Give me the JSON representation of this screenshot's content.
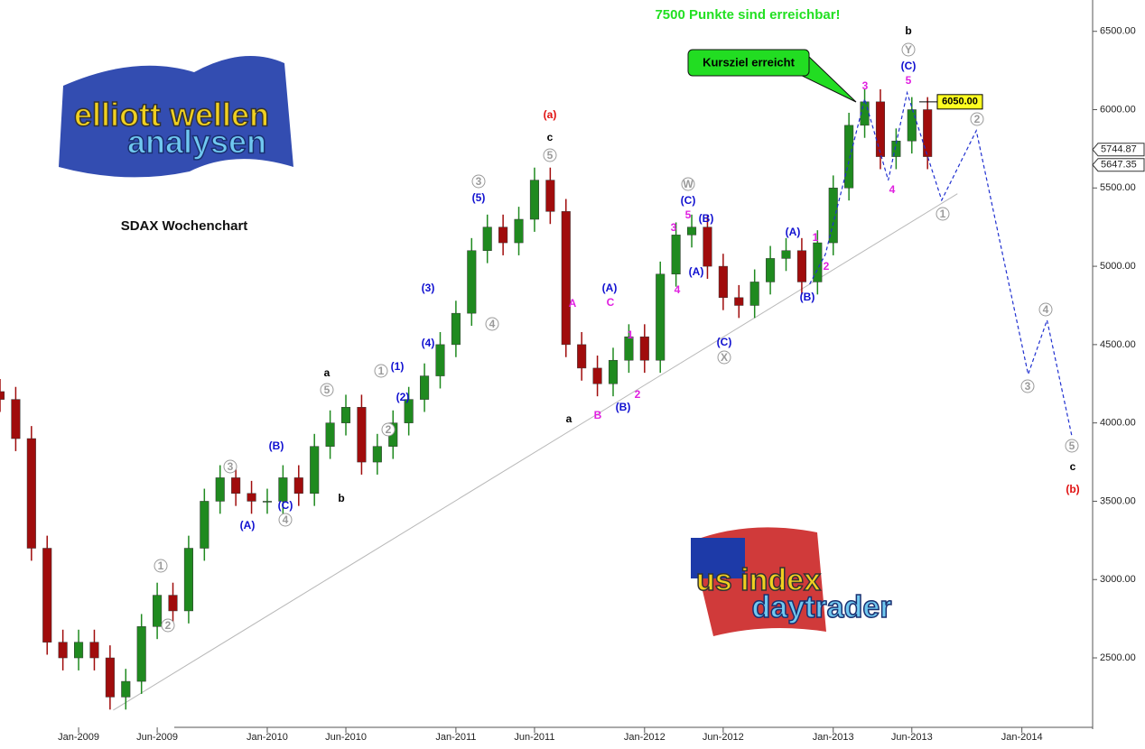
{
  "chart_data": {
    "type": "candlestick",
    "title": "7500 Punkte sind erreichbar!",
    "subtitle": "SDAX Wochenchart",
    "callout": "Kursziel erreicht",
    "logos": [
      "elliott wellen",
      "analysen",
      "us index",
      "daytrader"
    ],
    "up_color": "#1f8a1f",
    "down_color": "#a00c0c",
    "x": [
      -5,
      -4,
      -3,
      -2,
      -1,
      0,
      1,
      2,
      3,
      4,
      5,
      6,
      7,
      8,
      9,
      10,
      11,
      12,
      13,
      14,
      15,
      16,
      17,
      18,
      19,
      20,
      21,
      22,
      23,
      24,
      25,
      26,
      27,
      28,
      29,
      30,
      31,
      32,
      33,
      34,
      35,
      36,
      37,
      38,
      39,
      40,
      41,
      42,
      43,
      44,
      45,
      46,
      47,
      48,
      49,
      50,
      51,
      52,
      53,
      54
    ],
    "open": [
      4200,
      4150,
      3900,
      3200,
      2600,
      2500,
      2600,
      2500,
      2250,
      2350,
      2700,
      2900,
      2800,
      3200,
      3500,
      3650,
      3550,
      3500,
      3500,
      3650,
      3550,
      3850,
      4000,
      4100,
      3750,
      3850,
      4000,
      4150,
      4300,
      4500,
      4700,
      5100,
      5250,
      5150,
      5300,
      5550,
      5350,
      4500,
      4350,
      4250,
      4400,
      4550,
      4400,
      4950,
      5200,
      5250,
      5000,
      4800,
      4750,
      4900,
      5050,
      5100,
      4900,
      5150,
      5500,
      5900,
      6050,
      5700,
      5800,
      6000
    ],
    "high": [
      4280,
      4230,
      3980,
      3280,
      2680,
      2680,
      2680,
      2580,
      2430,
      2780,
      2980,
      2980,
      3280,
      3580,
      3730,
      3730,
      3630,
      3580,
      3730,
      3730,
      3930,
      4080,
      4180,
      4180,
      3930,
      4080,
      4230,
      4380,
      4580,
      4780,
      5180,
      5330,
      5330,
      5380,
      5630,
      5630,
      5430,
      4580,
      4430,
      4480,
      4630,
      4630,
      5030,
      5280,
      5330,
      5330,
      5080,
      4880,
      4980,
      5130,
      5180,
      5180,
      5230,
      5580,
      5980,
      6130,
      6130,
      5880,
      6080,
      6080
    ],
    "low": [
      4070,
      3820,
      3120,
      2520,
      2420,
      2420,
      2420,
      2170,
      2170,
      2270,
      2620,
      2720,
      2720,
      3120,
      3420,
      3470,
      3420,
      3420,
      3420,
      3470,
      3470,
      3770,
      3920,
      3670,
      3670,
      3770,
      3920,
      4070,
      4220,
      4420,
      4620,
      5020,
      5070,
      5070,
      5220,
      5270,
      4420,
      4270,
      4170,
      4170,
      4320,
      4320,
      4320,
      4870,
      5120,
      4920,
      4720,
      4670,
      4670,
      4820,
      4970,
      4820,
      4820,
      5070,
      5420,
      5820,
      5620,
      5620,
      5720,
      5620
    ],
    "close": [
      4150,
      3900,
      3200,
      2600,
      2500,
      2600,
      2500,
      2250,
      2350,
      2700,
      2900,
      2800,
      3200,
      3500,
      3650,
      3550,
      3500,
      3500,
      3650,
      3550,
      3850,
      4000,
      4100,
      3750,
      3850,
      4000,
      4150,
      4300,
      4500,
      4700,
      5100,
      5250,
      5150,
      5300,
      5550,
      5350,
      4500,
      4350,
      4250,
      4400,
      4550,
      4400,
      4950,
      5200,
      5250,
      5000,
      4800,
      4750,
      4900,
      5050,
      5100,
      4900,
      5150,
      5500,
      5900,
      6050,
      5700,
      5800,
      6000,
      5700
    ],
    "xlim": [
      -5,
      64.5
    ],
    "ylim": [
      2045,
      6700
    ],
    "xticks": [
      {
        "value": 0,
        "label": "Jan-2009"
      },
      {
        "value": 5,
        "label": "Jun-2009"
      },
      {
        "value": 12,
        "label": "Jan-2010"
      },
      {
        "value": 17,
        "label": "Jun-2010"
      },
      {
        "value": 24,
        "label": "Jan-2011"
      },
      {
        "value": 29,
        "label": "Jun-2011"
      },
      {
        "value": 36,
        "label": "Jan-2012"
      },
      {
        "value": 41,
        "label": "Jun-2012"
      },
      {
        "value": 48,
        "label": "Jan-2013"
      },
      {
        "value": 53,
        "label": "Jun-2013"
      },
      {
        "value": 60,
        "label": "Jan-2014"
      }
    ],
    "yticks": [
      {
        "value": 2500,
        "label": "2500.00"
      },
      {
        "value": 3000,
        "label": "3000.00"
      },
      {
        "value": 3500,
        "label": "3500.00"
      },
      {
        "value": 4000,
        "label": "4000.00"
      },
      {
        "value": 4500,
        "label": "4500.00"
      },
      {
        "value": 5000,
        "label": "5000.00"
      },
      {
        "value": 5500,
        "label": "5500.00"
      },
      {
        "value": 6000,
        "label": "6000.00"
      },
      {
        "value": 6500,
        "label": "6500.00"
      }
    ],
    "target": {
      "value": 6050,
      "label": "6050.00"
    },
    "last_prices": [
      {
        "value": 5744.87,
        "label": "5744.87"
      },
      {
        "value": 5647.35,
        "label": "5647.35"
      }
    ],
    "trendline": {
      "x": [
        2.2,
        55.9
      ],
      "values": [
        2166,
        5463
      ],
      "color": "#b8b8b8"
    },
    "projection": {
      "x": [
        46.5,
        47.5,
        50,
        51.5,
        52.7,
        54.9,
        57.1,
        60.4,
        61.6,
        63.2
      ],
      "values": [
        4886,
        5076,
        6068,
        5549,
        6108,
        5422,
        5866,
        4310,
        4656,
        3906
      ],
      "color": "#2030d0"
    },
    "wave_labels": {
      "red": {
        "color": "#e01010",
        "texts": [
          "(a)",
          "(b)"
        ]
      },
      "black": {
        "color": "#000000",
        "texts": [
          "c",
          "a",
          "b",
          "a",
          "b",
          "c"
        ]
      },
      "blue": {
        "color": "#1010d0",
        "texts": [
          "(B)",
          "(C)",
          "(A)",
          "(1)",
          "(2)",
          "(3)",
          "(4)",
          "(5)",
          "(A)",
          "(B)",
          "(C)",
          "(B)",
          "(A)",
          "(C)",
          "(A)",
          "(B)",
          "(C)"
        ]
      },
      "magenta": {
        "color": "#e020e0",
        "texts": [
          "A",
          "C",
          "B",
          "1",
          "2",
          "3",
          "5",
          "4",
          "1",
          "2",
          "3",
          "4",
          "5"
        ]
      },
      "gray": {
        "color": "#9a9a9a",
        "texts": [
          "1",
          "2",
          "3",
          "4",
          "5",
          "1",
          "2",
          "3",
          "4",
          "5",
          "W",
          "X",
          "Y",
          "2",
          "1",
          "3",
          "4",
          "5"
        ]
      }
    }
  }
}
